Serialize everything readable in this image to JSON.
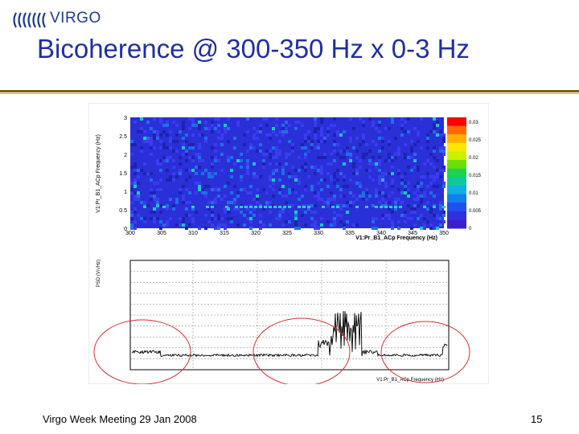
{
  "header": {
    "logo_text": "VIRGO"
  },
  "slide": {
    "title": "Bicoherence @ 300-350 Hz x 0-3 Hz"
  },
  "footer": {
    "meeting": "Virgo Week Meeting 29 Jan 2008",
    "page_number": "15"
  },
  "colors": {
    "title": "#1f2fa0",
    "rule": "#7a6100",
    "highlight_circle": "#d23030"
  },
  "top_plot": {
    "y_axis_label": "V1:Pr_B1_ACp Frequency (Hz)",
    "x_axis_label": "V1:Pr_B1_ACp Frequency (Hz)",
    "y_ticks": [
      "3",
      "2.5",
      "2",
      "1.5",
      "1",
      "0.5",
      "0"
    ],
    "x_ticks": [
      "300",
      "305",
      "310",
      "315",
      "320",
      "325",
      "330",
      "335",
      "340",
      "345",
      "350"
    ],
    "color_scale_ticks": [
      "0.03",
      "0.025",
      "0.02",
      "0.015",
      "0.01",
      "0.005",
      "0"
    ]
  },
  "bottom_plot": {
    "y_axis_label": "PSD (V/√Hz)",
    "x_axis_label": "V1:Pr_B1_ACp Frequency (Hz)",
    "annotation_icons": [
      "highlight-circle-left",
      "highlight-circle-middle",
      "highlight-circle-right"
    ]
  }
}
